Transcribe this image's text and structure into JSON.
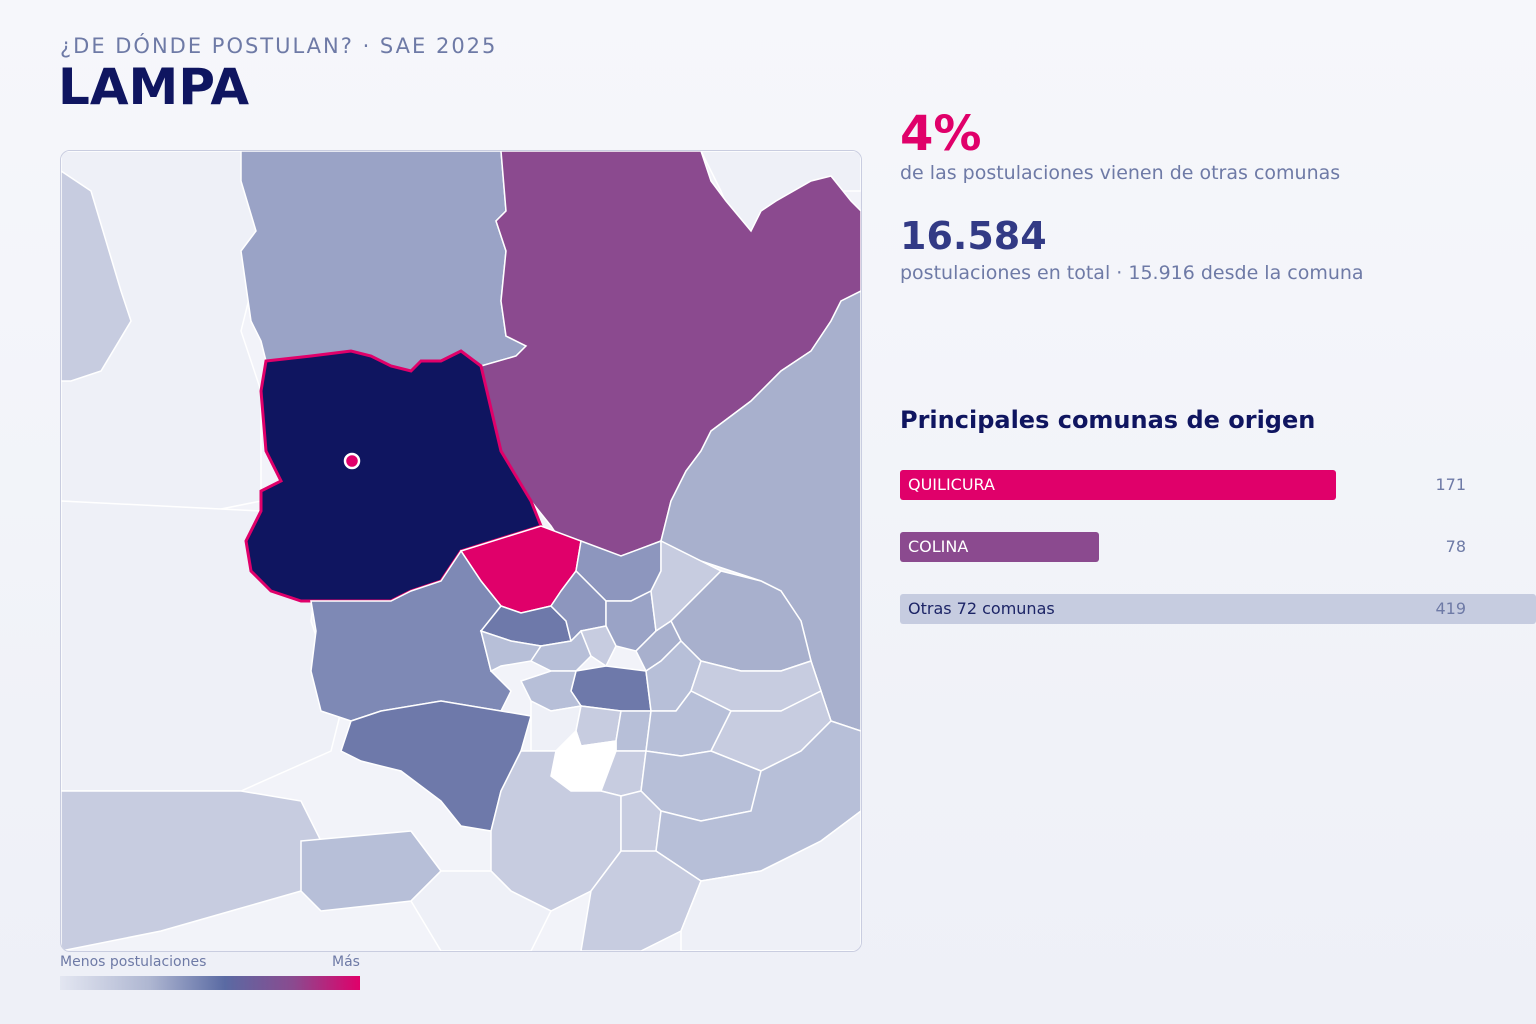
{
  "header": {
    "kicker": "¿DE DÓNDE POSTULAN? · SAE 2025",
    "title": "LAMPA"
  },
  "kpis": {
    "external_pct": "4%",
    "external_pct_label": "de las postulaciones vienen de otras comunas",
    "total": "16.584",
    "total_label": "postulaciones en total · 15.916 desde la comuna"
  },
  "origins": {
    "title": "Principales comunas de origen",
    "max_value": 171,
    "items": [
      {
        "label": "QUILICURA",
        "value": 171,
        "color": "#e0006a",
        "text_color": "#ffffff"
      },
      {
        "label": "COLINA",
        "value": 78,
        "color": "#8b4a8f",
        "text_color": "#ffffff"
      },
      {
        "label": "Otras 72 comunas",
        "value": 419,
        "color": "#c6cce0",
        "text_color": "#1c2466"
      }
    ]
  },
  "legend": {
    "min_label": "Menos postulaciones",
    "max_label": "Más"
  },
  "colors": {
    "selected": "#0f1560",
    "top_origin": "#e0006a",
    "second_origin": "#8b4a8f",
    "accent": "#e0006a",
    "outline_selected": "#e0006a",
    "low": "#e3e6f1"
  }
}
